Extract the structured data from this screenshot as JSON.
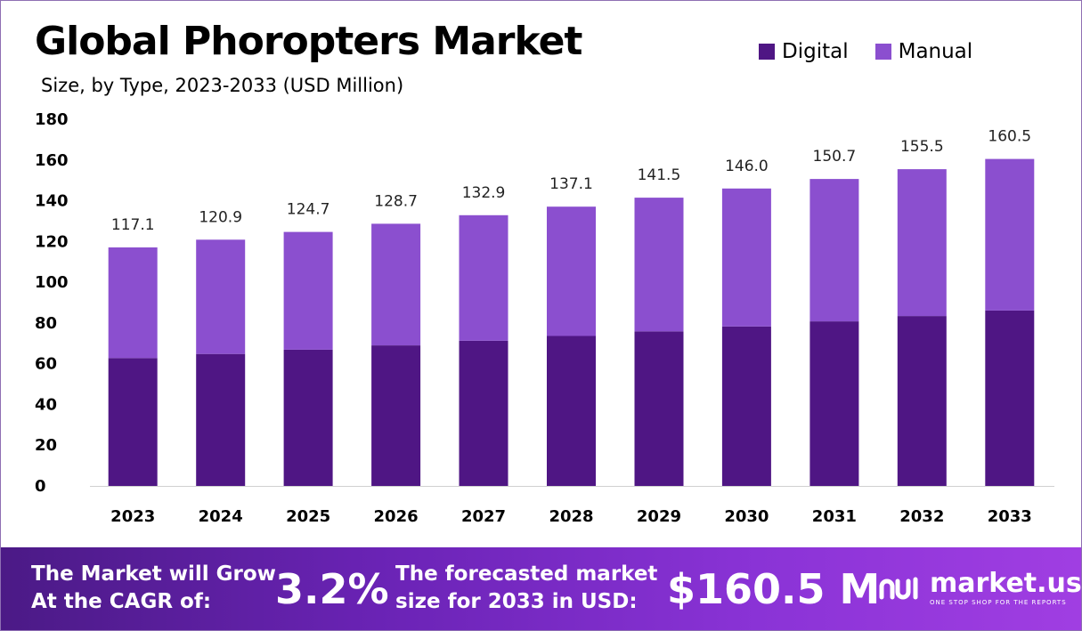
{
  "header": {
    "title": "Global Phoropters Market",
    "subtitle": "Size, by Type, 2023-2033 (USD Million)"
  },
  "legend": [
    {
      "label": "Digital",
      "color": "#4f1684"
    },
    {
      "label": "Manual",
      "color": "#8b4fcf"
    }
  ],
  "chart_data": {
    "type": "bar",
    "stacked": true,
    "categories": [
      "2023",
      "2024",
      "2025",
      "2026",
      "2027",
      "2028",
      "2029",
      "2030",
      "2031",
      "2032",
      "2033"
    ],
    "series": [
      {
        "name": "Digital",
        "color": "#4f1684",
        "values": [
          62.8,
          64.8,
          66.9,
          69.0,
          71.3,
          73.6,
          75.9,
          78.3,
          80.8,
          83.4,
          86.1
        ]
      },
      {
        "name": "Manual",
        "color": "#8b4fcf",
        "values": [
          54.3,
          56.1,
          57.8,
          59.7,
          61.6,
          63.5,
          65.6,
          67.7,
          69.9,
          72.1,
          74.4
        ]
      }
    ],
    "totals": [
      "117.1",
      "120.9",
      "124.7",
      "128.7",
      "132.9",
      "137.1",
      "141.5",
      "146.0",
      "150.7",
      "155.5",
      "160.5"
    ],
    "ylim": [
      0,
      180
    ],
    "yticks": [
      "0",
      "20",
      "40",
      "60",
      "80",
      "100",
      "120",
      "140",
      "160",
      "180"
    ],
    "grid": false,
    "legend_position": "top-right"
  },
  "banner": {
    "cagr_text_line1": "The Market will Grow",
    "cagr_text_line2": "At the CAGR of:",
    "cagr_value": "3.2%",
    "forecast_text_line1": "The forecasted market",
    "forecast_text_line2": "size for 2033 in USD:",
    "forecast_value": "$160.5 M",
    "logo_name": "market.us",
    "logo_tagline": "ONE STOP SHOP FOR THE REPORTS",
    "logo_icon": "market-us-logo-icon",
    "gradient": [
      "#4b1a86",
      "#a03ee2"
    ]
  }
}
